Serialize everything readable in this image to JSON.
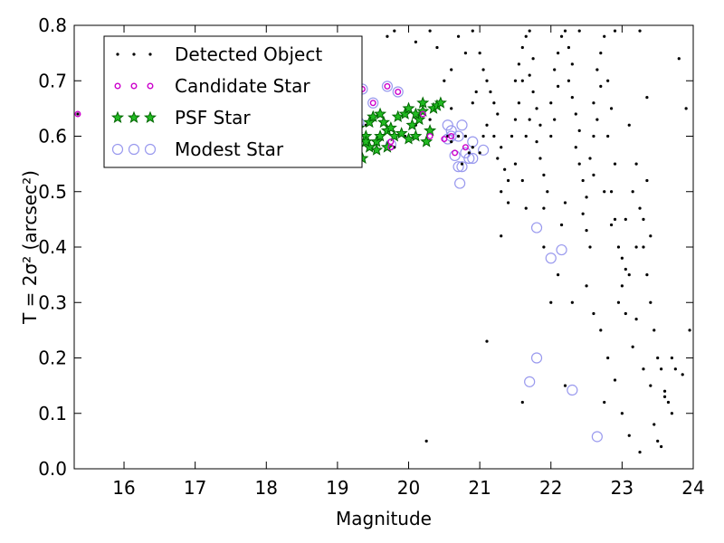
{
  "chart_data": {
    "type": "scatter",
    "xlabel": "Magnitude",
    "ylabel": "T = 2σ² (arcsec²)",
    "xlim": [
      15.3,
      24
    ],
    "ylim": [
      0.0,
      0.8
    ],
    "x_ticks": [
      16,
      17,
      18,
      19,
      20,
      21,
      22,
      23,
      24
    ],
    "y_ticks": [
      0.0,
      0.1,
      0.2,
      0.3,
      0.4,
      0.5,
      0.6,
      0.7,
      0.8
    ],
    "grid": false,
    "legend_position": "top-left",
    "series": [
      {
        "name": "Detected Object",
        "marker": "dot",
        "color": "#000000",
        "points": [
          [
            15.35,
            0.64
          ],
          [
            19.1,
            0.61
          ],
          [
            19.25,
            0.6
          ],
          [
            19.4,
            0.62
          ],
          [
            19.6,
            0.6
          ],
          [
            19.8,
            0.58
          ],
          [
            19.95,
            0.6
          ],
          [
            20.1,
            0.62
          ],
          [
            20.3,
            0.63
          ],
          [
            20.55,
            0.6
          ],
          [
            20.6,
            0.59
          ],
          [
            20.7,
            0.6
          ],
          [
            20.8,
            0.6
          ],
          [
            20.9,
            0.58
          ],
          [
            20.75,
            0.55
          ],
          [
            20.85,
            0.57
          ],
          [
            21.0,
            0.57
          ],
          [
            21.05,
            0.6
          ],
          [
            20.6,
            0.65
          ],
          [
            20.9,
            0.66
          ],
          [
            20.95,
            0.68
          ],
          [
            20.5,
            0.7
          ],
          [
            20.6,
            0.72
          ],
          [
            20.8,
            0.75
          ],
          [
            20.4,
            0.76
          ],
          [
            20.1,
            0.77
          ],
          [
            19.8,
            0.79
          ],
          [
            19.7,
            0.78
          ],
          [
            20.3,
            0.79
          ],
          [
            20.7,
            0.78
          ],
          [
            20.9,
            0.79
          ],
          [
            21.0,
            0.75
          ],
          [
            21.05,
            0.72
          ],
          [
            21.1,
            0.7
          ],
          [
            21.15,
            0.68
          ],
          [
            21.2,
            0.66
          ],
          [
            21.25,
            0.64
          ],
          [
            21.1,
            0.62
          ],
          [
            21.2,
            0.6
          ],
          [
            21.3,
            0.58
          ],
          [
            21.25,
            0.56
          ],
          [
            21.35,
            0.54
          ],
          [
            21.4,
            0.52
          ],
          [
            21.3,
            0.5
          ],
          [
            21.4,
            0.48
          ],
          [
            21.5,
            0.55
          ],
          [
            21.45,
            0.6
          ],
          [
            21.5,
            0.63
          ],
          [
            21.55,
            0.66
          ],
          [
            21.5,
            0.7
          ],
          [
            21.55,
            0.73
          ],
          [
            21.6,
            0.76
          ],
          [
            21.65,
            0.78
          ],
          [
            21.7,
            0.79
          ],
          [
            21.75,
            0.74
          ],
          [
            21.7,
            0.71
          ],
          [
            21.75,
            0.68
          ],
          [
            21.8,
            0.65
          ],
          [
            21.85,
            0.62
          ],
          [
            21.8,
            0.59
          ],
          [
            21.85,
            0.56
          ],
          [
            21.9,
            0.53
          ],
          [
            21.95,
            0.5
          ],
          [
            21.9,
            0.47
          ],
          [
            22.0,
            0.6
          ],
          [
            22.05,
            0.63
          ],
          [
            22.0,
            0.66
          ],
          [
            22.1,
            0.69
          ],
          [
            22.05,
            0.72
          ],
          [
            22.1,
            0.75
          ],
          [
            22.15,
            0.78
          ],
          [
            22.2,
            0.79
          ],
          [
            22.25,
            0.76
          ],
          [
            22.3,
            0.73
          ],
          [
            22.25,
            0.7
          ],
          [
            22.3,
            0.67
          ],
          [
            22.35,
            0.64
          ],
          [
            22.4,
            0.61
          ],
          [
            22.35,
            0.58
          ],
          [
            22.4,
            0.55
          ],
          [
            22.45,
            0.52
          ],
          [
            22.5,
            0.49
          ],
          [
            22.45,
            0.46
          ],
          [
            22.5,
            0.43
          ],
          [
            22.55,
            0.4
          ],
          [
            22.6,
            0.6
          ],
          [
            22.65,
            0.63
          ],
          [
            22.6,
            0.66
          ],
          [
            22.7,
            0.69
          ],
          [
            22.65,
            0.72
          ],
          [
            22.7,
            0.75
          ],
          [
            22.75,
            0.78
          ],
          [
            22.8,
            0.7
          ],
          [
            22.85,
            0.65
          ],
          [
            22.8,
            0.6
          ],
          [
            22.9,
            0.55
          ],
          [
            22.85,
            0.5
          ],
          [
            22.9,
            0.45
          ],
          [
            22.95,
            0.4
          ],
          [
            23.0,
            0.38
          ],
          [
            23.05,
            0.36
          ],
          [
            23.0,
            0.33
          ],
          [
            23.1,
            0.35
          ],
          [
            23.15,
            0.5
          ],
          [
            23.2,
            0.55
          ],
          [
            23.1,
            0.62
          ],
          [
            23.25,
            0.47
          ],
          [
            23.3,
            0.4
          ],
          [
            23.35,
            0.35
          ],
          [
            23.4,
            0.3
          ],
          [
            23.45,
            0.25
          ],
          [
            23.5,
            0.2
          ],
          [
            23.55,
            0.18
          ],
          [
            23.6,
            0.14
          ],
          [
            23.65,
            0.12
          ],
          [
            23.7,
            0.1
          ],
          [
            23.45,
            0.08
          ],
          [
            23.5,
            0.05
          ],
          [
            23.55,
            0.04
          ],
          [
            23.6,
            0.13
          ],
          [
            23.7,
            0.2
          ],
          [
            23.75,
            0.18
          ],
          [
            23.8,
            0.74
          ],
          [
            23.9,
            0.65
          ],
          [
            23.95,
            0.25
          ],
          [
            23.85,
            0.17
          ],
          [
            23.35,
            0.67
          ],
          [
            23.25,
            0.79
          ],
          [
            22.9,
            0.79
          ],
          [
            22.4,
            0.79
          ],
          [
            21.9,
            0.4
          ],
          [
            22.0,
            0.3
          ],
          [
            22.1,
            0.35
          ],
          [
            22.3,
            0.3
          ],
          [
            22.5,
            0.33
          ],
          [
            22.6,
            0.28
          ],
          [
            22.7,
            0.25
          ],
          [
            22.8,
            0.2
          ],
          [
            22.9,
            0.16
          ],
          [
            23.0,
            0.1
          ],
          [
            22.75,
            0.12
          ],
          [
            22.2,
            0.15
          ],
          [
            21.6,
            0.12
          ],
          [
            21.1,
            0.23
          ],
          [
            20.25,
            0.05
          ],
          [
            23.1,
            0.06
          ],
          [
            23.25,
            0.03
          ],
          [
            23.3,
            0.45
          ],
          [
            23.4,
            0.42
          ],
          [
            23.35,
            0.52
          ],
          [
            21.6,
            0.7
          ],
          [
            21.65,
            0.6
          ],
          [
            21.7,
            0.63
          ],
          [
            21.6,
            0.52
          ],
          [
            21.65,
            0.47
          ],
          [
            21.3,
            0.42
          ],
          [
            22.15,
            0.44
          ],
          [
            22.2,
            0.48
          ],
          [
            22.55,
            0.56
          ],
          [
            22.6,
            0.53
          ],
          [
            22.75,
            0.5
          ],
          [
            22.85,
            0.44
          ],
          [
            22.95,
            0.3
          ],
          [
            23.05,
            0.28
          ],
          [
            23.2,
            0.27
          ],
          [
            23.15,
            0.22
          ],
          [
            23.3,
            0.18
          ],
          [
            23.4,
            0.15
          ],
          [
            23.2,
            0.4
          ],
          [
            23.05,
            0.45
          ]
        ]
      },
      {
        "name": "Candidate Star",
        "marker": "small-circle",
        "color": "#cc00cc",
        "points": [
          [
            15.35,
            0.64
          ],
          [
            19.1,
            0.62
          ],
          [
            19.3,
            0.63
          ],
          [
            19.35,
            0.685
          ],
          [
            19.5,
            0.66
          ],
          [
            19.7,
            0.69
          ],
          [
            19.85,
            0.68
          ],
          [
            19.75,
            0.59
          ],
          [
            19.75,
            0.58
          ],
          [
            20.2,
            0.64
          ],
          [
            20.3,
            0.6
          ],
          [
            20.5,
            0.595
          ],
          [
            20.6,
            0.6
          ],
          [
            20.65,
            0.57
          ],
          [
            20.8,
            0.58
          ]
        ]
      },
      {
        "name": "PSF Star",
        "marker": "star",
        "color": "#00aa00",
        "points": [
          [
            19.15,
            0.61
          ],
          [
            19.2,
            0.6
          ],
          [
            19.25,
            0.64
          ],
          [
            19.3,
            0.615
          ],
          [
            19.35,
            0.56
          ],
          [
            19.4,
            0.6
          ],
          [
            19.45,
            0.625
          ],
          [
            19.5,
            0.635
          ],
          [
            19.55,
            0.59
          ],
          [
            19.6,
            0.6
          ],
          [
            19.65,
            0.625
          ],
          [
            19.7,
            0.61
          ],
          [
            19.75,
            0.615
          ],
          [
            19.8,
            0.6
          ],
          [
            19.85,
            0.635
          ],
          [
            19.9,
            0.605
          ],
          [
            19.95,
            0.64
          ],
          [
            20.0,
            0.595
          ],
          [
            20.05,
            0.62
          ],
          [
            20.1,
            0.6
          ],
          [
            20.15,
            0.63
          ],
          [
            20.2,
            0.645
          ],
          [
            20.25,
            0.59
          ],
          [
            20.3,
            0.61
          ],
          [
            20.35,
            0.65
          ],
          [
            20.4,
            0.655
          ],
          [
            20.45,
            0.66
          ],
          [
            19.55,
            0.575
          ],
          [
            19.7,
            0.58
          ],
          [
            19.45,
            0.58
          ],
          [
            20.0,
            0.65
          ],
          [
            20.2,
            0.66
          ],
          [
            19.6,
            0.64
          ],
          [
            19.4,
            0.59
          ],
          [
            20.1,
            0.64
          ]
        ]
      },
      {
        "name": "Modest Star",
        "marker": "open-circle",
        "color": "#9999ee",
        "points": [
          [
            19.3,
            0.625
          ],
          [
            19.35,
            0.685
          ],
          [
            19.5,
            0.66
          ],
          [
            19.7,
            0.69
          ],
          [
            19.85,
            0.68
          ],
          [
            19.75,
            0.585
          ],
          [
            20.55,
            0.595
          ],
          [
            20.6,
            0.6
          ],
          [
            20.65,
            0.565
          ],
          [
            20.7,
            0.545
          ],
          [
            20.75,
            0.545
          ],
          [
            20.72,
            0.515
          ],
          [
            20.7,
            0.6
          ],
          [
            20.75,
            0.62
          ],
          [
            20.8,
            0.57
          ],
          [
            20.85,
            0.56
          ],
          [
            20.9,
            0.56
          ],
          [
            21.05,
            0.575
          ],
          [
            20.9,
            0.59
          ],
          [
            20.6,
            0.61
          ],
          [
            21.8,
            0.435
          ],
          [
            22.0,
            0.38
          ],
          [
            22.15,
            0.395
          ],
          [
            21.8,
            0.2
          ],
          [
            21.7,
            0.157
          ],
          [
            22.3,
            0.142
          ],
          [
            22.65,
            0.058
          ],
          [
            20.55,
            0.62
          ]
        ]
      }
    ]
  }
}
